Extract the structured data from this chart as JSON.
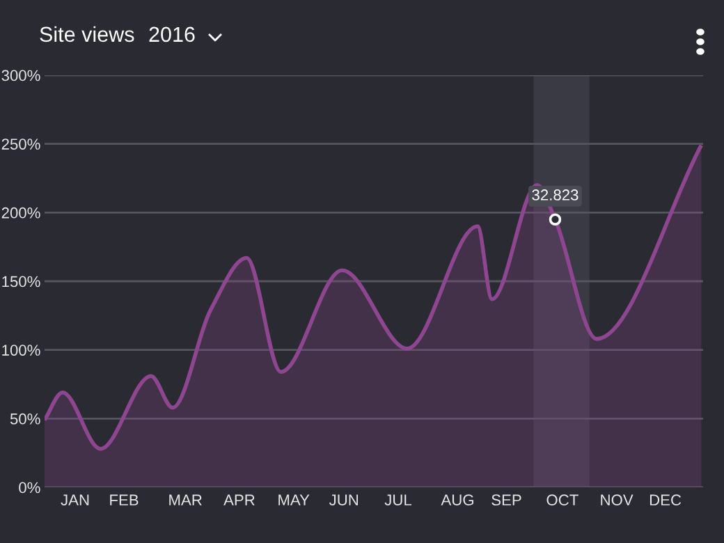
{
  "chart_data": {
    "type": "area",
    "title": "Site views",
    "subtitle": "2016",
    "x": [
      "2016-01-01",
      "2016-01-11",
      "2016-02-01",
      "2016-02-29",
      "2016-03-12",
      "2016-04-02",
      "2016-04-22",
      "2016-05-11",
      "2016-06-14",
      "2016-07-20",
      "2016-08-28",
      "2016-09-05",
      "2016-09-30",
      "2016-10-10",
      "2016-11-02",
      "2016-12-30"
    ],
    "series": [
      {
        "color": "#8e4690",
        "values": [
          49,
          69,
          28,
          81,
          58,
          129,
          167,
          84,
          158,
          101,
          190,
          137,
          220,
          195,
          108,
          249
        ]
      }
    ],
    "xlim": [
      "2016-01-01",
      "2016-12-31"
    ],
    "xticks": [
      {
        "value": "2016-01-18",
        "label": "JAN"
      },
      {
        "value": "2016-02-14",
        "label": "FEB"
      },
      {
        "value": "2016-03-19",
        "label": "MAR"
      },
      {
        "value": "2016-04-18",
        "label": "APR"
      },
      {
        "value": "2016-05-18",
        "label": "MAY"
      },
      {
        "value": "2016-06-15",
        "label": "JUN"
      },
      {
        "value": "2016-07-15",
        "label": "JUL"
      },
      {
        "value": "2016-08-17",
        "label": "AUG"
      },
      {
        "value": "2016-09-13",
        "label": "SEP"
      },
      {
        "value": "2016-10-14",
        "label": "OCT"
      },
      {
        "value": "2016-11-13",
        "label": "NOV"
      },
      {
        "value": "2016-12-10",
        "label": "DEC"
      }
    ],
    "ylim": [
      0,
      300
    ],
    "yticks": [
      {
        "value": 0,
        "label": "0%"
      },
      {
        "value": 50,
        "label": "50%"
      },
      {
        "value": 100,
        "label": "100%"
      },
      {
        "value": 150,
        "label": "150%"
      },
      {
        "value": 200,
        "label": "200%"
      },
      {
        "value": 250,
        "label": "250%"
      },
      {
        "value": 300,
        "label": "300%"
      }
    ],
    "bands": [
      {
        "axis": "x",
        "from": "2016-09-28",
        "to": "2016-10-29",
        "color": "#3a3a44"
      }
    ],
    "annotations": [
      {
        "text": "32.823",
        "x": "2016-10-10",
        "y": 195
      }
    ],
    "grid": "y",
    "legend": false,
    "line_style": "solid",
    "marker": "none"
  }
}
